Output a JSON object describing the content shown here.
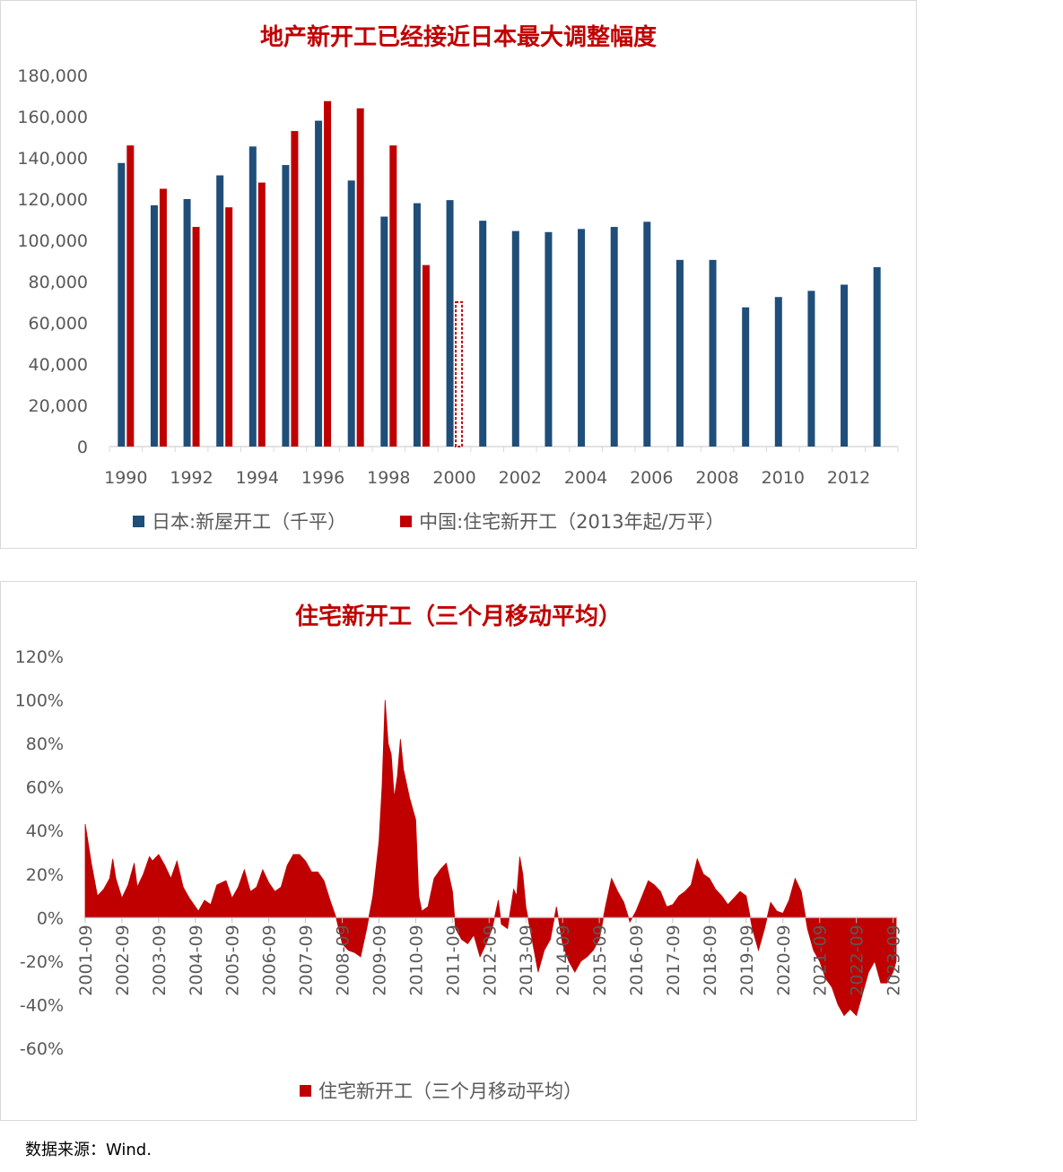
{
  "chart_data": [
    {
      "type": "bar",
      "title": "地产新开工已经接近日本最大调整幅度",
      "categories": [
        "1990",
        "1991",
        "1992",
        "1993",
        "1994",
        "1995",
        "1996",
        "1997",
        "1998",
        "1999",
        "2000",
        "2001",
        "2002",
        "2003",
        "2004",
        "2005",
        "2006",
        "2007",
        "2008",
        "2009",
        "2010",
        "2011",
        "2012",
        "2013"
      ],
      "x_tick_labels": [
        "1990",
        "1992",
        "1994",
        "1996",
        "1998",
        "2000",
        "2002",
        "2004",
        "2006",
        "2008",
        "2010",
        "2012"
      ],
      "y_tick_labels": [
        "0",
        "20,000",
        "40,000",
        "60,000",
        "80,000",
        "100,000",
        "120,000",
        "140,000",
        "160,000",
        "180,000"
      ],
      "ylim": [
        0,
        180000
      ],
      "legend_position": "bottom",
      "series": [
        {
          "name": "日本:新屋开工（千平）",
          "color": "#1f4e79",
          "values": [
            137500,
            117000,
            120000,
            131500,
            145500,
            136500,
            158000,
            129000,
            111500,
            118000,
            119500,
            109500,
            104500,
            104000,
            105500,
            106500,
            109000,
            90500,
            90500,
            67500,
            72500,
            75500,
            78500,
            87000
          ]
        },
        {
          "name": "中国:住宅新开工（2013年起/万平）",
          "color": "#c00000",
          "values": [
            146000,
            125000,
            106500,
            116000,
            128000,
            153000,
            167500,
            164000,
            146000,
            88000,
            70500,
            null,
            null,
            null,
            null,
            null,
            null,
            null,
            null,
            null,
            null,
            null,
            null,
            null
          ],
          "dashed_index": 10
        }
      ]
    },
    {
      "type": "area",
      "title": "住宅新开工（三个月移动平均）",
      "x_tick_labels": [
        "2001-09",
        "2002-09",
        "2003-09",
        "2004-09",
        "2005-09",
        "2006-09",
        "2007-09",
        "2008-09",
        "2009-09",
        "2010-09",
        "2011-09",
        "2012-09",
        "2013-09",
        "2014-09",
        "2015-09",
        "2016-09",
        "2017-09",
        "2018-09",
        "2019-09",
        "2020-09",
        "2021-09",
        "2022-09",
        "2023-09"
      ],
      "y_tick_labels": [
        "-60%",
        "-40%",
        "-20%",
        "0%",
        "20%",
        "40%",
        "60%",
        "80%",
        "100%",
        "120%"
      ],
      "ylim": [
        -60,
        120
      ],
      "legend_position": "bottom",
      "series": [
        {
          "name": "住宅新开工（三个月移动平均）",
          "color": "#c00000",
          "points": [
            [
              "2001-09",
              43
            ],
            [
              "2001-11",
              25
            ],
            [
              "2002-01",
              10
            ],
            [
              "2002-03",
              13
            ],
            [
              "2002-05",
              18
            ],
            [
              "2002-06",
              27
            ],
            [
              "2002-07",
              18
            ],
            [
              "2002-09",
              9
            ],
            [
              "2002-11",
              15
            ],
            [
              "2003-01",
              25
            ],
            [
              "2003-02",
              14
            ],
            [
              "2003-04",
              20
            ],
            [
              "2003-06",
              28
            ],
            [
              "2003-07",
              26
            ],
            [
              "2003-09",
              29
            ],
            [
              "2003-11",
              24
            ],
            [
              "2004-01",
              18
            ],
            [
              "2004-03",
              26
            ],
            [
              "2004-05",
              14
            ],
            [
              "2004-07",
              9
            ],
            [
              "2004-09",
              5
            ],
            [
              "2004-10",
              3
            ],
            [
              "2004-12",
              8
            ],
            [
              "2005-02",
              6
            ],
            [
              "2005-04",
              15
            ],
            [
              "2005-07",
              17
            ],
            [
              "2005-09",
              9
            ],
            [
              "2005-11",
              14
            ],
            [
              "2006-01",
              22
            ],
            [
              "2006-03",
              12
            ],
            [
              "2006-05",
              14
            ],
            [
              "2006-07",
              22
            ],
            [
              "2006-09",
              16
            ],
            [
              "2006-11",
              12
            ],
            [
              "2007-01",
              14
            ],
            [
              "2007-03",
              24
            ],
            [
              "2007-05",
              29
            ],
            [
              "2007-07",
              29
            ],
            [
              "2007-09",
              26
            ],
            [
              "2007-11",
              21
            ],
            [
              "2008-01",
              21
            ],
            [
              "2008-03",
              17
            ],
            [
              "2008-05",
              8
            ],
            [
              "2008-07",
              0
            ],
            [
              "2008-09",
              -12
            ],
            [
              "2008-11",
              -15
            ],
            [
              "2009-01",
              -16
            ],
            [
              "2009-03",
              -18
            ],
            [
              "2009-05",
              -5
            ],
            [
              "2009-07",
              10
            ],
            [
              "2009-09",
              35
            ],
            [
              "2009-10",
              60
            ],
            [
              "2009-11",
              100
            ],
            [
              "2009-12",
              80
            ],
            [
              "2010-01",
              75
            ],
            [
              "2010-02",
              55
            ],
            [
              "2010-03",
              65
            ],
            [
              "2010-04",
              82
            ],
            [
              "2010-05",
              68
            ],
            [
              "2010-07",
              55
            ],
            [
              "2010-09",
              45
            ],
            [
              "2010-10",
              10
            ],
            [
              "2010-11",
              3
            ],
            [
              "2011-01",
              5
            ],
            [
              "2011-03",
              18
            ],
            [
              "2011-05",
              22
            ],
            [
              "2011-07",
              25
            ],
            [
              "2011-09",
              12
            ],
            [
              "2011-10",
              -5
            ],
            [
              "2011-12",
              -10
            ],
            [
              "2012-02",
              -12
            ],
            [
              "2012-04",
              -8
            ],
            [
              "2012-06",
              -18
            ],
            [
              "2012-08",
              -12
            ],
            [
              "2012-10",
              -5
            ],
            [
              "2012-12",
              8
            ],
            [
              "2013-01",
              -3
            ],
            [
              "2013-03",
              -5
            ],
            [
              "2013-05",
              13
            ],
            [
              "2013-06",
              10
            ],
            [
              "2013-07",
              28
            ],
            [
              "2013-08",
              20
            ],
            [
              "2013-09",
              5
            ],
            [
              "2013-11",
              -10
            ],
            [
              "2014-01",
              -25
            ],
            [
              "2014-03",
              -15
            ],
            [
              "2014-05",
              -10
            ],
            [
              "2014-07",
              5
            ],
            [
              "2014-09",
              -12
            ],
            [
              "2014-11",
              -20
            ],
            [
              "2015-01",
              -25
            ],
            [
              "2015-03",
              -20
            ],
            [
              "2015-05",
              -18
            ],
            [
              "2015-07",
              -15
            ],
            [
              "2015-09",
              -10
            ],
            [
              "2015-11",
              5
            ],
            [
              "2016-01",
              18
            ],
            [
              "2016-03",
              12
            ],
            [
              "2016-05",
              7
            ],
            [
              "2016-07",
              -2
            ],
            [
              "2016-09",
              3
            ],
            [
              "2016-11",
              10
            ],
            [
              "2017-01",
              17
            ],
            [
              "2017-03",
              15
            ],
            [
              "2017-05",
              12
            ],
            [
              "2017-07",
              5
            ],
            [
              "2017-09",
              6
            ],
            [
              "2017-11",
              10
            ],
            [
              "2018-01",
              12
            ],
            [
              "2018-03",
              15
            ],
            [
              "2018-05",
              27
            ],
            [
              "2018-07",
              20
            ],
            [
              "2018-09",
              18
            ],
            [
              "2018-11",
              13
            ],
            [
              "2019-01",
              10
            ],
            [
              "2019-03",
              6
            ],
            [
              "2019-05",
              9
            ],
            [
              "2019-07",
              12
            ],
            [
              "2019-09",
              10
            ],
            [
              "2019-11",
              -5
            ],
            [
              "2020-01",
              -15
            ],
            [
              "2020-03",
              -5
            ],
            [
              "2020-05",
              7
            ],
            [
              "2020-07",
              3
            ],
            [
              "2020-09",
              2
            ],
            [
              "2020-11",
              8
            ],
            [
              "2021-01",
              18
            ],
            [
              "2021-03",
              12
            ],
            [
              "2021-05",
              -5
            ],
            [
              "2021-07",
              -15
            ],
            [
              "2021-09",
              -20
            ],
            [
              "2021-11",
              -28
            ],
            [
              "2022-01",
              -32
            ],
            [
              "2022-03",
              -40
            ],
            [
              "2022-05",
              -45
            ],
            [
              "2022-07",
              -42
            ],
            [
              "2022-09",
              -45
            ],
            [
              "2022-11",
              -35
            ],
            [
              "2023-01",
              -25
            ],
            [
              "2023-03",
              -20
            ],
            [
              "2023-05",
              -30
            ],
            [
              "2023-07",
              -30
            ],
            [
              "2023-09",
              -25
            ],
            [
              "2023-10",
              -20
            ]
          ]
        }
      ]
    }
  ],
  "source": "数据来源：Wind."
}
